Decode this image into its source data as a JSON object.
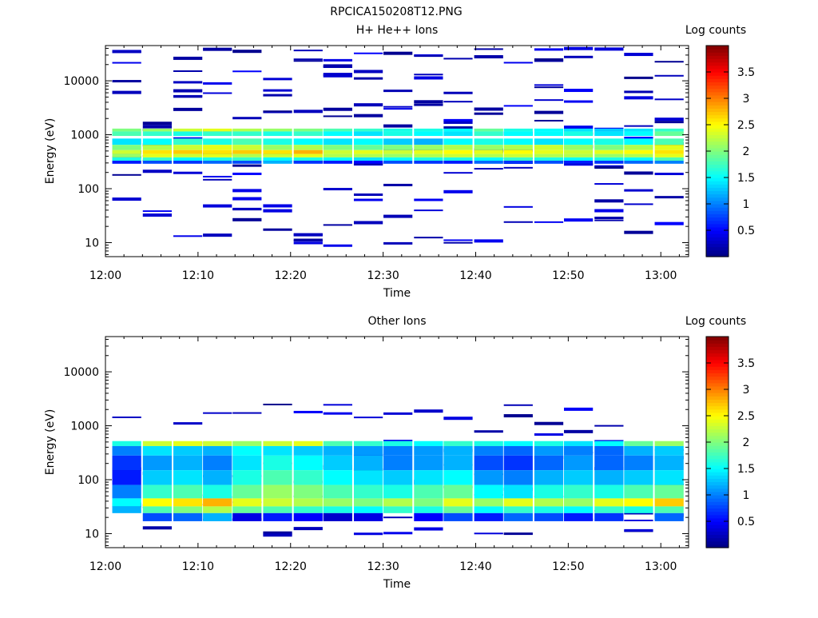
{
  "figure_title": "RPCICA150208T12.PNG",
  "chart_data": [
    {
      "type": "heatmap",
      "title": "H+ He++ Ions",
      "colorbar_label": "Log counts",
      "xlabel": "Time",
      "ylabel": "Energy (eV)",
      "y_scale": "log",
      "ylim": [
        5.5,
        45000
      ],
      "xlim": [
        "12:00",
        "13:03"
      ],
      "xticks": [
        "12:00",
        "12:10",
        "12:20",
        "12:30",
        "12:40",
        "12:50",
        "13:00"
      ],
      "yticks": [
        "10",
        "100",
        "1000",
        "10000"
      ],
      "colorbar_range": [
        0,
        4
      ],
      "colorbar_ticks": [
        "0.5",
        "1",
        "1.5",
        "2",
        "2.5",
        "3",
        "3.5"
      ],
      "colormap": [
        "#00007f",
        "#0000ff",
        "#007fff",
        "#00ffff",
        "#7fff7f",
        "#ffff00",
        "#ff7f00",
        "#ff0000",
        "#7f0000"
      ],
      "grid": false,
      "time_bins_min": [
        2.3,
        5.6,
        8.9,
        12.1,
        15.3,
        18.6,
        21.9,
        25.1,
        28.4,
        31.6,
        34.9,
        38.1,
        41.4,
        44.6,
        47.9,
        51.1,
        54.4,
        57.6,
        60.9
      ],
      "spectral_bands_ev": [
        {
          "energy": [
            1150,
            1300
          ],
          "values": [
            2.0,
            2.1,
            2.3,
            2.4,
            2.2,
            2.1,
            2.0,
            1.8,
            1.7,
            1.6,
            1.6,
            1.5,
            1.9,
            1.6,
            1.5,
            1.4,
            1.3,
            1.4,
            1.7
          ]
        },
        {
          "energy": [
            950,
            1150
          ],
          "values": [
            1.8,
            1.7,
            1.6,
            1.7,
            1.7,
            1.6,
            1.7,
            1.5,
            1.4,
            1.6,
            1.5,
            1.4,
            1.7,
            1.5,
            1.5,
            1.6,
            1.4,
            1.5,
            1.9
          ]
        },
        {
          "energy": [
            650,
            850
          ],
          "values": [
            1.4,
            1.5,
            1.7,
            1.6,
            1.8,
            1.6,
            1.5,
            1.4,
            1.5,
            1.3,
            1.2,
            1.5,
            1.6,
            1.5,
            1.4,
            1.5,
            1.6,
            1.5,
            1.8
          ]
        },
        {
          "energy": [
            520,
            650
          ],
          "values": [
            2.0,
            2.2,
            2.3,
            2.4,
            2.3,
            2.1,
            2.2,
            2.0,
            1.9,
            2.0,
            2.1,
            2.2,
            2.1,
            2.2,
            2.3,
            2.1,
            2.0,
            2.2,
            2.4
          ]
        },
        {
          "energy": [
            440,
            520
          ],
          "values": [
            2.3,
            2.6,
            2.7,
            2.6,
            2.7,
            2.6,
            2.8,
            2.3,
            2.4,
            2.3,
            2.4,
            2.5,
            2.4,
            2.5,
            2.4,
            2.3,
            2.4,
            2.5,
            2.6
          ]
        },
        {
          "energy": [
            380,
            440
          ],
          "values": [
            2.1,
            2.4,
            2.3,
            2.4,
            2.2,
            2.3,
            2.4,
            2.2,
            2.2,
            2.1,
            2.2,
            2.3,
            2.2,
            2.3,
            2.2,
            2.2,
            2.1,
            2.2,
            2.4
          ]
        },
        {
          "energy": [
            330,
            380
          ],
          "values": [
            1.6,
            1.7,
            1.5,
            1.6,
            1.7,
            1.5,
            1.6,
            1.5,
            1.4,
            1.5,
            1.6,
            1.6,
            1.5,
            1.7,
            1.6,
            1.5,
            1.6,
            1.5,
            1.8
          ]
        },
        {
          "energy": [
            290,
            330
          ],
          "values": [
            0.6,
            0.8,
            0.7,
            0.9,
            0.8,
            1.2,
            0.7,
            0.6,
            0.5,
            0.8,
            0.7,
            0.6,
            0.9,
            0.7,
            0.8,
            0.6,
            0.7,
            0.9,
            1.0
          ]
        }
      ],
      "sparse_counts": "single-count bins (log counts ~0.1-0.6) scattered between 10 and 40000 eV"
    },
    {
      "type": "heatmap",
      "title": "Other Ions",
      "colorbar_label": "Log counts",
      "xlabel": "Time",
      "ylabel": "Energy (eV)",
      "y_scale": "log",
      "ylim": [
        5.5,
        45000
      ],
      "xlim": [
        "12:00",
        "13:03"
      ],
      "xticks": [
        "12:00",
        "12:10",
        "12:20",
        "12:30",
        "12:40",
        "12:50",
        "13:00"
      ],
      "yticks": [
        "10",
        "100",
        "1000",
        "10000"
      ],
      "colorbar_range": [
        0,
        4
      ],
      "colorbar_ticks": [
        "0.5",
        "1",
        "1.5",
        "2",
        "2.5",
        "3",
        "3.5"
      ],
      "colormap": [
        "#00007f",
        "#0000ff",
        "#007fff",
        "#00ffff",
        "#7fff7f",
        "#ffff00",
        "#ff7f00",
        "#ff0000",
        "#7f0000"
      ],
      "grid": false,
      "time_bins_min": [
        2.3,
        5.6,
        8.9,
        12.1,
        15.3,
        18.6,
        21.9,
        25.1,
        28.4,
        31.6,
        34.9,
        38.1,
        41.4,
        44.6,
        47.9,
        51.1,
        54.4,
        57.6,
        60.9
      ],
      "spectral_bands_ev": [
        {
          "energy": [
            420,
            520
          ],
          "values": [
            1.6,
            2.3,
            2.4,
            2.3,
            2.1,
            2.3,
            2.4,
            1.8,
            1.7,
            1.6,
            1.5,
            1.7,
            1.6,
            1.5,
            1.6,
            1.4,
            1.5,
            1.9,
            2.1
          ]
        },
        {
          "energy": [
            280,
            420
          ],
          "values": [
            1.0,
            1.4,
            1.3,
            1.2,
            1.5,
            1.4,
            1.3,
            1.2,
            1.1,
            1.0,
            1.1,
            1.2,
            1.0,
            0.9,
            1.1,
            1.0,
            0.9,
            1.2,
            1.3
          ]
        },
        {
          "energy": [
            150,
            280
          ],
          "values": [
            0.7,
            1.1,
            1.2,
            1.0,
            1.4,
            1.6,
            1.5,
            1.3,
            1.2,
            1.0,
            1.1,
            1.2,
            0.8,
            0.7,
            0.9,
            1.1,
            0.9,
            1.0,
            1.2
          ]
        },
        {
          "energy": [
            80,
            150
          ],
          "values": [
            0.6,
            1.3,
            1.4,
            1.2,
            1.6,
            1.8,
            1.7,
            1.5,
            1.4,
            1.3,
            1.4,
            1.5,
            1.1,
            1.0,
            1.2,
            1.3,
            1.2,
            1.3,
            1.4
          ]
        },
        {
          "energy": [
            45,
            80
          ],
          "values": [
            1.0,
            1.7,
            1.8,
            1.6,
            1.9,
            2.1,
            2.0,
            1.8,
            1.7,
            1.6,
            1.8,
            1.9,
            1.5,
            1.4,
            1.6,
            1.7,
            1.6,
            1.8,
            1.9
          ]
        },
        {
          "energy": [
            32,
            45
          ],
          "values": [
            1.5,
            2.5,
            2.6,
            2.8,
            2.4,
            2.3,
            2.2,
            2.1,
            2.0,
            2.2,
            2.0,
            2.4,
            2.1,
            2.4,
            2.2,
            2.1,
            2.4,
            2.5,
            2.7
          ]
        },
        {
          "energy": [
            24,
            32
          ],
          "values": [
            1.2,
            1.8,
            2.0,
            2.2,
            1.9,
            1.8,
            1.7,
            1.6,
            1.5,
            1.7,
            1.6,
            1.9,
            1.5,
            1.7,
            1.6,
            1.5,
            1.7,
            1.6,
            1.8
          ]
        },
        {
          "energy": [
            17,
            24
          ],
          "values": [
            0,
            0.8,
            0.9,
            1.2,
            0.4,
            0.6,
            0.5,
            0.3,
            0.4,
            0,
            0.5,
            0.8,
            0.6,
            0.9,
            0.8,
            0.6,
            0.7,
            0,
            0.9
          ]
        }
      ],
      "sparse_counts": "single-count bins (log counts ~0.1-0.6) scattered between 8 and 2500 eV"
    }
  ]
}
